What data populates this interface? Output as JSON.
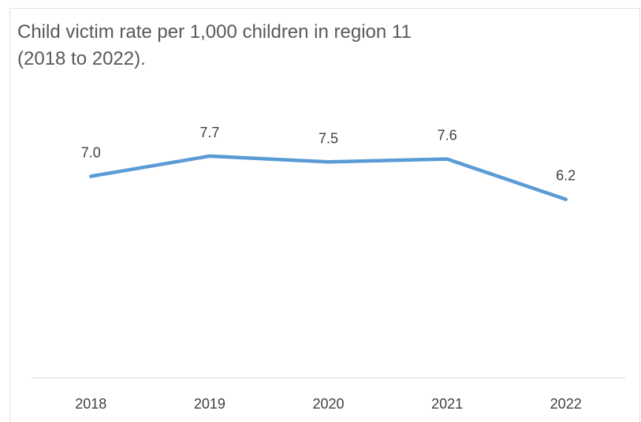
{
  "chart_data": {
    "type": "line",
    "title": "Child victim rate per 1,000 children in region 11\n(2018 to 2022).",
    "categories": [
      "2018",
      "2019",
      "2020",
      "2021",
      "2022"
    ],
    "series": [
      {
        "values": [
          7.0,
          7.7,
          7.5,
          7.6,
          6.2
        ],
        "labels": [
          "7.0",
          "7.7",
          "7.5",
          "7.6",
          "6.2"
        ],
        "color": "#5b9bd5"
      }
    ],
    "xlabel": "",
    "ylabel": "",
    "ylim": [
      0,
      10.5
    ],
    "grid": false,
    "legend": "none"
  }
}
